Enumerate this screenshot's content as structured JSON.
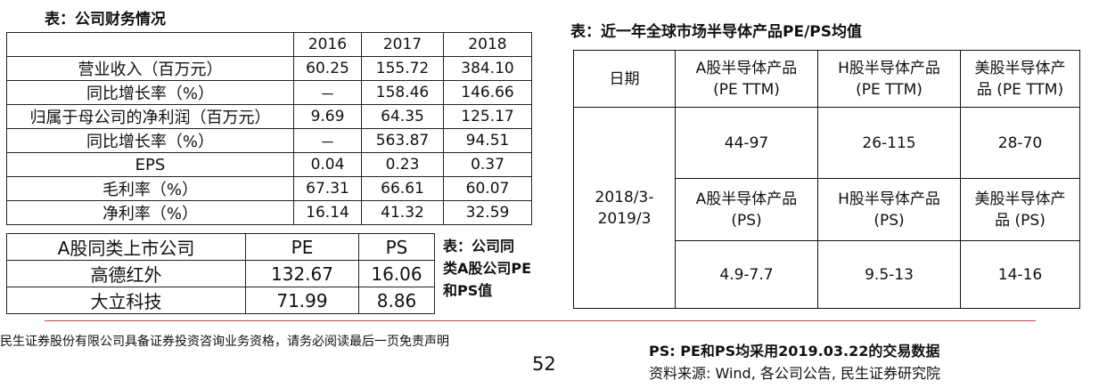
{
  "fin_title": "表：公司财务情况",
  "fin_table": {
    "headers": [
      "",
      "2016",
      "2017",
      "2018"
    ],
    "rows": [
      [
        "营业收入（百万元）",
        "60.25",
        "155.72",
        "384.10"
      ],
      [
        "同比增长率（%）",
        "－",
        "158.46",
        "146.66"
      ],
      [
        "归属于母公司的净利润（百万元）",
        "9.69",
        "64.35",
        "125.17"
      ],
      [
        "同比增长率（%）",
        "－",
        "563.87",
        "94.51"
      ],
      [
        "EPS",
        "0.04",
        "0.23",
        "0.37"
      ],
      [
        "毛利率（%）",
        "67.31",
        "66.61",
        "60.07"
      ],
      [
        "净利率（%）",
        "16.14",
        "41.32",
        "32.59"
      ]
    ]
  },
  "peer_table": {
    "headers": [
      "A股同类上市公司",
      "PE",
      "PS"
    ],
    "rows": [
      [
        "高德红外",
        "132.67",
        "16.06"
      ],
      [
        "大立科技",
        "71.99",
        "8.86"
      ]
    ]
  },
  "peer_caption": [
    "表：公司同",
    "类A股公司PE",
    "和PS值"
  ],
  "glob_title": "表：近一年全球市场半导体产品PE/PS均值",
  "glob_table": {
    "date_header": "日期",
    "date_value": [
      "2018/3-",
      "2019/3"
    ],
    "pe_headers": [
      [
        "A股半导体产品",
        "(PE TTM)"
      ],
      [
        "H股半导体产品",
        "(PE TTM)"
      ],
      [
        "美股半导体产",
        "品 (PE TTM)"
      ]
    ],
    "pe_values": [
      "44-97",
      "26-115",
      "28-70"
    ],
    "ps_headers": [
      [
        "A股半导体产品",
        "(PS)"
      ],
      [
        "H股半导体产品",
        "(PS)"
      ],
      [
        "美股半导体产",
        "品 (PS)"
      ]
    ],
    "ps_values": [
      "4.9-7.7",
      "9.5-13",
      "14-16"
    ]
  },
  "disclaimer": "民生证券股份有限公司具备证券投资咨询业务资格，请务必阅读最后一页免责声明",
  "page_number": "52",
  "ps_note": "PS: PE和PS均采用2019.03.22的交易数据",
  "source_note": "资料来源: Wind, 各公司公告, 民生证券研究院"
}
